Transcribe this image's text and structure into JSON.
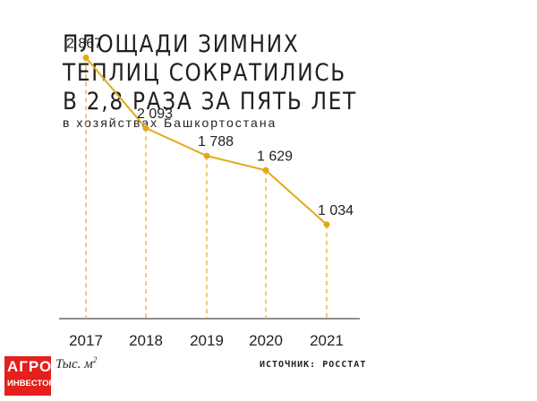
{
  "title_lines": [
    "ПЛОЩАДИ ЗИМНИХ",
    "ТЕПЛИЦ СОКРАТИЛИСЬ",
    "В 2,8 РАЗА ЗА ПЯТЬ ЛЕТ"
  ],
  "subtitle": "в хозяйствах Башкортостана",
  "unit": "Тыс. м",
  "unit_sup": "2",
  "source": "ИСТОЧНИК: РОССТАТ",
  "logo": {
    "line1": "АГРО",
    "line2": "ИНВЕСТОР"
  },
  "colors": {
    "line": "#e3a817",
    "text": "#231f20",
    "logo_bg": "#e3201b"
  },
  "chart_data": {
    "type": "line",
    "categories": [
      "2017",
      "2018",
      "2019",
      "2020",
      "2021"
    ],
    "values": [
      2867,
      2093,
      1788,
      1629,
      1034
    ],
    "value_labels": [
      "2 867",
      "2 093",
      "1 788",
      "1 629",
      "1 034"
    ],
    "title": "ПЛОЩАДИ ЗИМНИХ ТЕПЛИЦ СОКРАТИЛИСЬ В 2,8 РАЗА ЗА ПЯТЬ ЛЕТ",
    "xlabel": "",
    "ylabel": "Тыс. м2",
    "ylim": [
      0,
      3500
    ],
    "grid": false,
    "legend": "none"
  }
}
